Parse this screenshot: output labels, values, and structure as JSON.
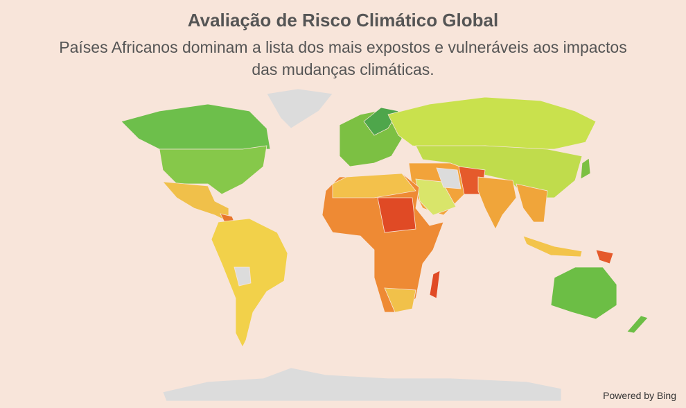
{
  "title": "Avaliação de Risco Climático Global",
  "subtitle": "Países Africanos dominam a lista dos mais expostos e vulneráveis aos impactos das mudanças climáticas.",
  "attribution": "Powered by Bing"
}
